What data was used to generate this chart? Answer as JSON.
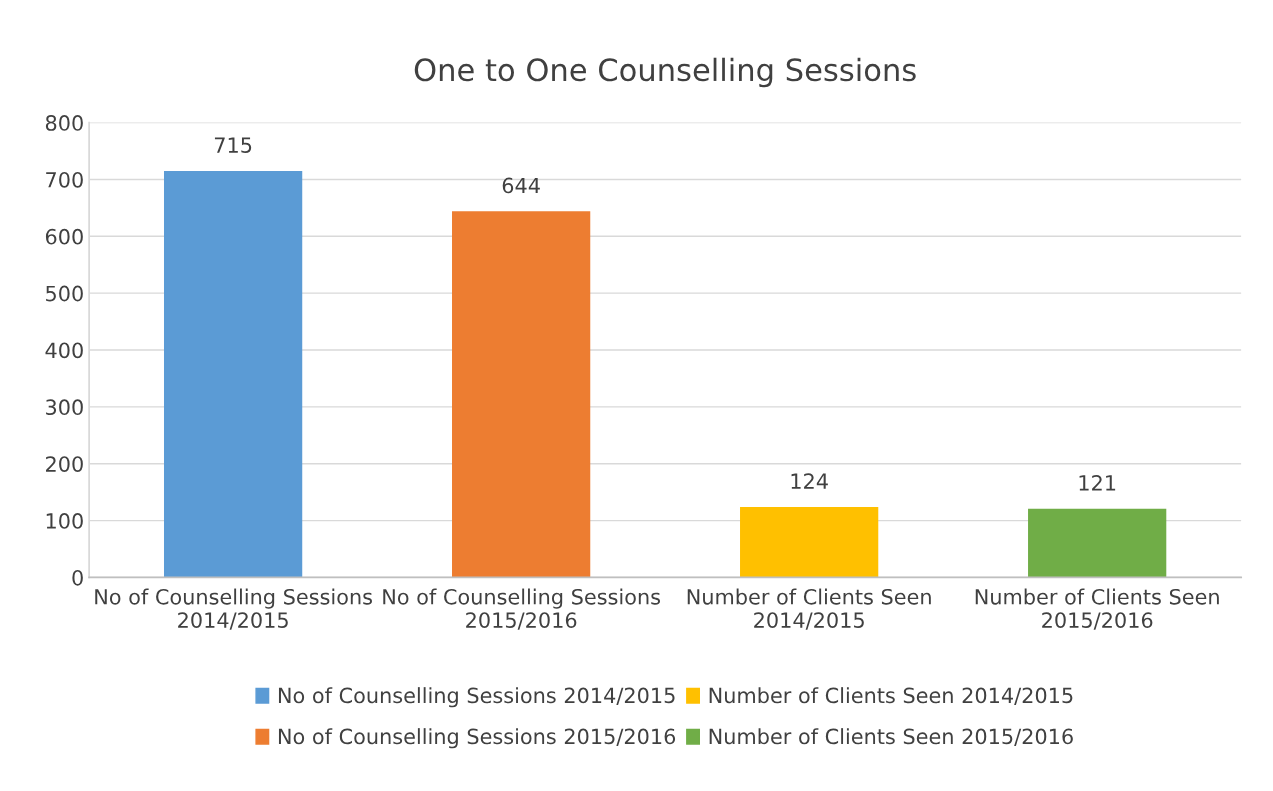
{
  "chart_data": {
    "type": "bar",
    "title": "One to One Counselling Sessions",
    "categories": [
      "No of Counselling Sessions\n2014/2015",
      "No of Counselling Sessions\n2015/2016",
      "Number of Clients Seen\n2014/2015",
      "Number of Clients Seen\n2015/2016"
    ],
    "series": [
      {
        "name": "No of Counselling Sessions 2014/2015",
        "color": "#5b9bd5",
        "values": [
          715,
          null,
          null,
          null
        ]
      },
      {
        "name": "No of Counselling Sessions 2015/2016",
        "color": "#ed7d31",
        "values": [
          null,
          644,
          null,
          null
        ]
      },
      {
        "name": "Number of Clients Seen 2014/2015",
        "color": "#ffc000",
        "values": [
          null,
          null,
          124,
          null
        ]
      },
      {
        "name": "Number of Clients Seen 2015/2016",
        "color": "#70ad47",
        "values": [
          null,
          null,
          null,
          121
        ]
      }
    ],
    "stacked": true,
    "data_labels": true,
    "ylim": [
      0,
      800
    ],
    "yticks": [
      0,
      100,
      200,
      300,
      400,
      500,
      600,
      700,
      800
    ],
    "grid": "y",
    "legend": "bottom"
  }
}
